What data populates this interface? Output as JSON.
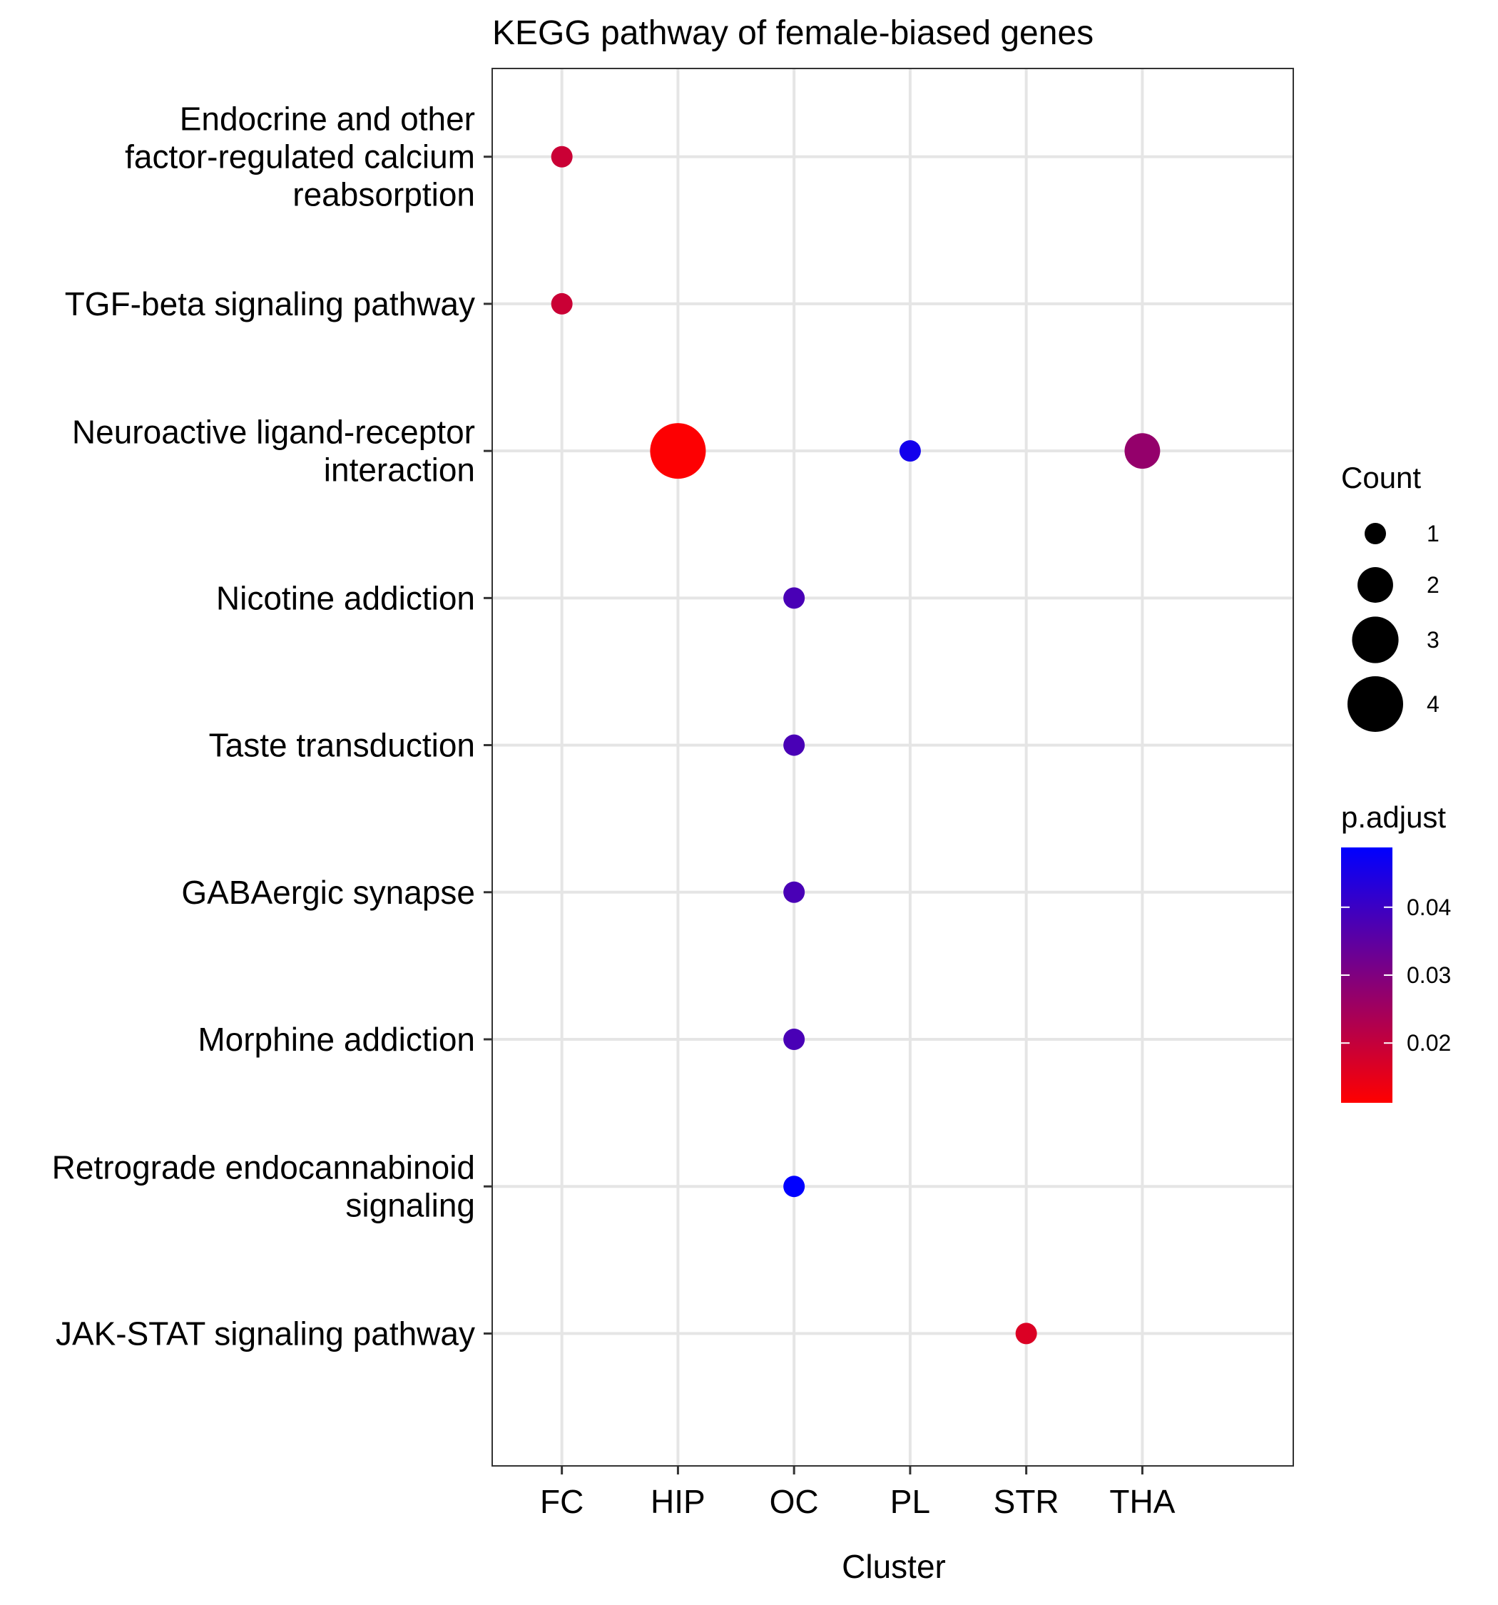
{
  "chart_data": {
    "type": "scatter",
    "title": "KEGG pathway of female-biased genes",
    "xlabel": "Cluster",
    "ylabel": "",
    "x_categories": [
      "FC",
      "HIP",
      "OC",
      "PL",
      "STR",
      "THA"
    ],
    "y_categories": [
      [
        "Endocrine and other",
        "factor-regulated calcium",
        "reabsorption"
      ],
      [
        "TGF-beta signaling pathway"
      ],
      [
        "Neuroactive ligand-receptor",
        "interaction"
      ],
      [
        "Nicotine addiction"
      ],
      [
        "Taste transduction"
      ],
      [
        "GABAergic synapse"
      ],
      [
        "Morphine addiction"
      ],
      [
        "Retrograde endocannabinoid",
        "signaling"
      ],
      [
        "JAK-STAT signaling pathway"
      ]
    ],
    "points": [
      {
        "x": "FC",
        "y": 0,
        "count": 1,
        "p_adjust": 0.019
      },
      {
        "x": "FC",
        "y": 1,
        "count": 1,
        "p_adjust": 0.019
      },
      {
        "x": "HIP",
        "y": 2,
        "count": 4,
        "p_adjust": 0.0115
      },
      {
        "x": "PL",
        "y": 2,
        "count": 1,
        "p_adjust": 0.046
      },
      {
        "x": "THA",
        "y": 2,
        "count": 2,
        "p_adjust": 0.027
      },
      {
        "x": "OC",
        "y": 3,
        "count": 1,
        "p_adjust": 0.038
      },
      {
        "x": "OC",
        "y": 4,
        "count": 1,
        "p_adjust": 0.038
      },
      {
        "x": "OC",
        "y": 5,
        "count": 1,
        "p_adjust": 0.038
      },
      {
        "x": "OC",
        "y": 6,
        "count": 1,
        "p_adjust": 0.038
      },
      {
        "x": "OC",
        "y": 7,
        "count": 1,
        "p_adjust": 0.049
      },
      {
        "x": "STR",
        "y": 8,
        "count": 1,
        "p_adjust": 0.0165
      }
    ],
    "legend_count": {
      "title": "Count",
      "entries": [
        1,
        2,
        3,
        4
      ],
      "labels": [
        "1",
        "2",
        "3",
        "4"
      ]
    },
    "legend_color": {
      "title": "p.adjust",
      "range": [
        0.0112,
        0.0488
      ],
      "low_color": "#ff0000",
      "high_color": "#0000ff",
      "ticks": [
        0.02,
        0.03,
        0.04
      ],
      "tick_labels": [
        "0.02",
        "0.03",
        "0.04"
      ]
    },
    "grid": true,
    "legend_position": "right"
  }
}
